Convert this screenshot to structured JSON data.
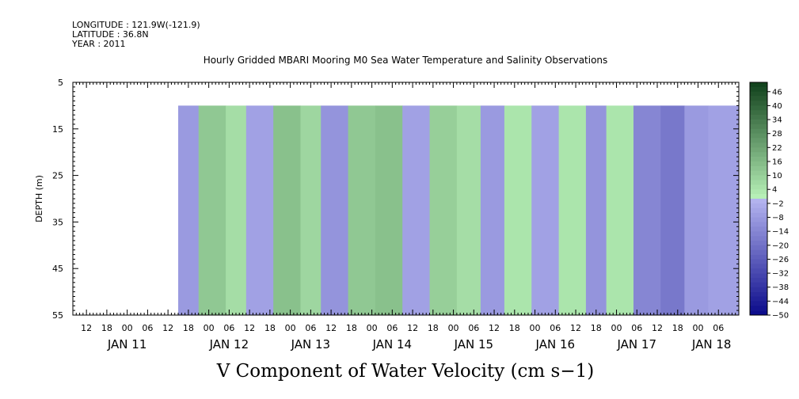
{
  "header": {
    "longitude": "LONGITUDE : 121.9W(-121.9)",
    "latitude": "LATITUDE : 36.8N",
    "year": "YEAR : 2011"
  },
  "colors": {
    "negative_light": "#b6b6f0",
    "negative_dark": "#0a0a8a",
    "positive_light": "#b9f3b9",
    "positive_dark": "#0f3f1a",
    "zero": "#cfd8cf"
  },
  "chart_data": {
    "type": "heatmap",
    "title": "Hourly Gridded MBARI Mooring M0 Sea Water Temperature and Salinity Observations",
    "xlabel": "",
    "ylabel": "DEPTH (m)",
    "variable_label": "V Component of Water Velocity (cm s−1)",
    "x_range": [
      "2011-01-10T08:00",
      "2011-01-18T12:00"
    ],
    "data_x_range": [
      "2011-01-11T15:00",
      "2011-01-18T12:00"
    ],
    "y_range": [
      5,
      55
    ],
    "y_inverted": true,
    "data_depth_range": [
      10,
      55
    ],
    "y_ticks": [
      5,
      15,
      25,
      35,
      45,
      55
    ],
    "x_hour_ticks": [
      "12",
      "18",
      "00",
      "06",
      "12",
      "18",
      "00",
      "06",
      "12",
      "18",
      "00",
      "06",
      "12",
      "18",
      "00",
      "06",
      "12",
      "18",
      "00",
      "06",
      "12",
      "18",
      "00",
      "06",
      "12",
      "18",
      "00",
      "06",
      "12",
      "18",
      "00",
      "06"
    ],
    "x_day_labels": [
      "JAN 11",
      "JAN 12",
      "JAN 13",
      "JAN 14",
      "JAN 15",
      "JAN 16",
      "JAN 17",
      "JAN 18"
    ],
    "colorbar": {
      "min": -50,
      "max": 50,
      "step": 2,
      "labels": [
        "46",
        "40",
        "34",
        "28",
        "22",
        "16",
        "10",
        "4",
        "−2",
        "−8",
        "−14",
        "−20",
        "−26",
        "−32",
        "−38",
        "−44",
        "−50"
      ]
    },
    "bands": [
      {
        "start": "2011-01-11T15:00",
        "end": "2011-01-11T21:00",
        "v": -8
      },
      {
        "start": "2011-01-11T21:00",
        "end": "2011-01-12T05:00",
        "v": 12
      },
      {
        "start": "2011-01-12T05:00",
        "end": "2011-01-12T11:00",
        "v": 6
      },
      {
        "start": "2011-01-12T11:00",
        "end": "2011-01-12T19:00",
        "v": -6
      },
      {
        "start": "2011-01-12T19:00",
        "end": "2011-01-13T03:00",
        "v": 14
      },
      {
        "start": "2011-01-13T03:00",
        "end": "2011-01-13T09:00",
        "v": 8
      },
      {
        "start": "2011-01-13T09:00",
        "end": "2011-01-13T17:00",
        "v": -10
      },
      {
        "start": "2011-01-13T17:00",
        "end": "2011-01-14T01:00",
        "v": 12
      },
      {
        "start": "2011-01-14T01:00",
        "end": "2011-01-14T09:00",
        "v": 14
      },
      {
        "start": "2011-01-14T09:00",
        "end": "2011-01-14T17:00",
        "v": -6
      },
      {
        "start": "2011-01-14T17:00",
        "end": "2011-01-15T01:00",
        "v": 10
      },
      {
        "start": "2011-01-15T01:00",
        "end": "2011-01-15T08:00",
        "v": 6
      },
      {
        "start": "2011-01-15T08:00",
        "end": "2011-01-15T15:00",
        "v": -8
      },
      {
        "start": "2011-01-15T15:00",
        "end": "2011-01-15T23:00",
        "v": 4
      },
      {
        "start": "2011-01-15T23:00",
        "end": "2011-01-16T07:00",
        "v": -6
      },
      {
        "start": "2011-01-16T07:00",
        "end": "2011-01-16T15:00",
        "v": 4
      },
      {
        "start": "2011-01-16T15:00",
        "end": "2011-01-16T21:00",
        "v": -10
      },
      {
        "start": "2011-01-16T21:00",
        "end": "2011-01-17T05:00",
        "v": 4
      },
      {
        "start": "2011-01-17T05:00",
        "end": "2011-01-17T13:00",
        "v": -14
      },
      {
        "start": "2011-01-17T13:00",
        "end": "2011-01-17T20:00",
        "v": -18
      },
      {
        "start": "2011-01-17T20:00",
        "end": "2011-01-18T03:00",
        "v": -8
      },
      {
        "start": "2011-01-18T03:00",
        "end": "2011-01-18T12:00",
        "v": -6
      }
    ]
  }
}
